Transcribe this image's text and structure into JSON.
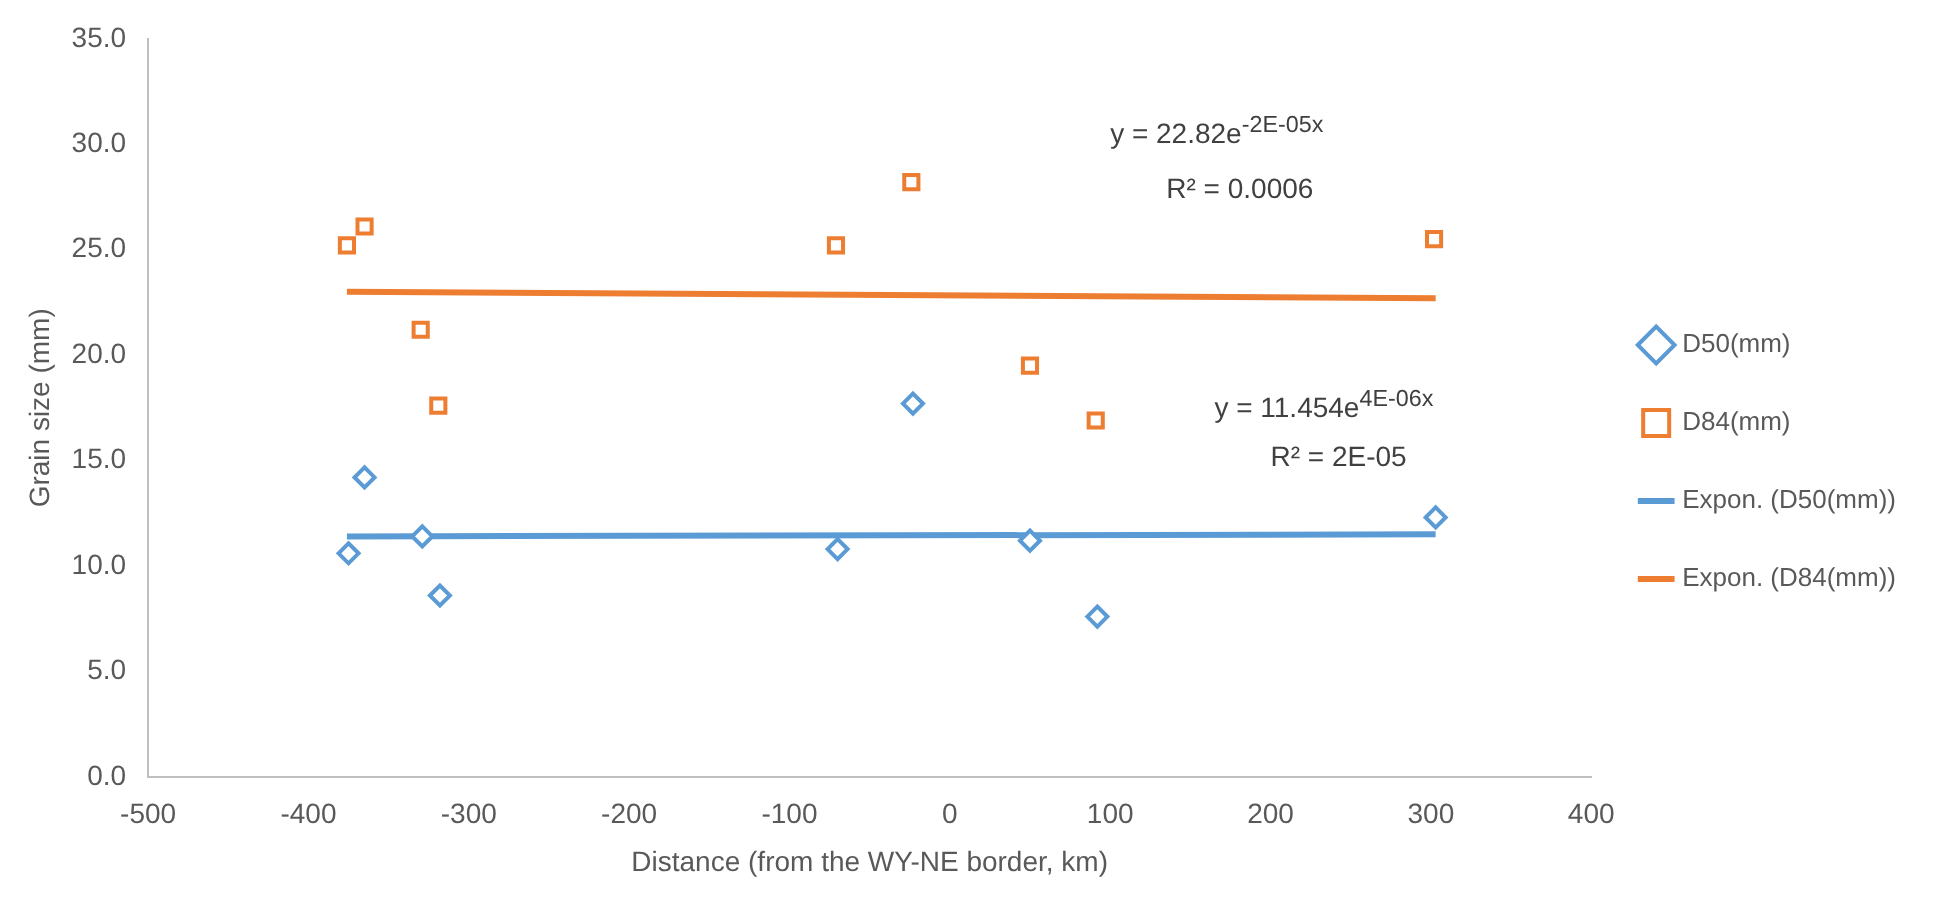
{
  "chart_data": {
    "type": "scatter",
    "xlabel": "Distance (from the WY-NE border, km)",
    "ylabel": "Grain size (mm)",
    "xlim": [
      -500,
      400
    ],
    "xticks": [
      -500,
      -400,
      -300,
      -200,
      -100,
      0,
      100,
      200,
      300,
      400
    ],
    "ylim": [
      0,
      35
    ],
    "yticks": [
      {
        "value": 0,
        "label": "0.0"
      },
      {
        "value": 5,
        "label": "5.0"
      },
      {
        "value": 10,
        "label": "10.0"
      },
      {
        "value": 15,
        "label": "15.0"
      },
      {
        "value": 20,
        "label": "20.0"
      },
      {
        "value": 25,
        "label": "25.0"
      },
      {
        "value": 30,
        "label": "30.0"
      },
      {
        "value": 35,
        "label": "35.0"
      }
    ],
    "grid": false,
    "legend": "right",
    "series": [
      {
        "name": "D50(mm)",
        "marker": "diamond",
        "color": "#5b9bd5",
        "x": [
          -375,
          -365,
          -329,
          -318,
          -70,
          -23,
          50,
          92,
          303
        ],
        "values": [
          10.6,
          14.2,
          11.4,
          8.6,
          10.8,
          17.7,
          11.2,
          7.6,
          12.3
        ]
      },
      {
        "name": "D84(mm)",
        "marker": "square",
        "color": "#ed7d31",
        "x": [
          -376,
          -365,
          -330,
          -319,
          -71,
          -24,
          50,
          91,
          302
        ],
        "values": [
          25.2,
          26.1,
          21.2,
          17.6,
          25.2,
          28.2,
          19.5,
          16.9,
          25.5
        ]
      },
      {
        "name": "Expon. (D50(mm))",
        "type": "line",
        "marker": "none",
        "color": "#5b9bd5",
        "x": [
          -376,
          303
        ],
        "values": [
          11.4,
          11.5
        ]
      },
      {
        "name": "Expon. (D84(mm))",
        "type": "line",
        "marker": "none",
        "color": "#ed7d31",
        "x": [
          -376,
          303
        ],
        "values": [
          23.0,
          22.7
        ]
      }
    ],
    "annotations": [
      "y = 22.82e$^{-2E-05x}$",
      "R² = 0.0006",
      "y = 11.454e$^{4E-06x}$",
      "R² = 2E-05"
    ]
  }
}
